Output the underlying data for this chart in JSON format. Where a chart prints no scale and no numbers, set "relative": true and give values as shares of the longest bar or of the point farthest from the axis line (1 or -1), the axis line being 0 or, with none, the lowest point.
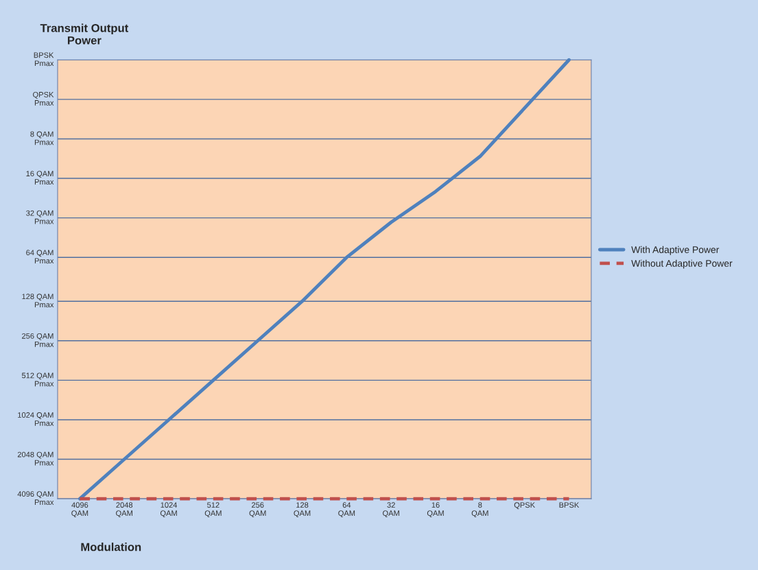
{
  "chart_data": {
    "type": "line",
    "ylabel": "Transmit Output\nPower",
    "xlabel": "Modulation",
    "relative": true,
    "categories": [
      "4096\nQAM",
      "2048\nQAM",
      "1024\nQAM",
      "512\nQAM",
      "256\nQAM",
      "128\nQAM",
      "64\nQAM",
      "32\nQAM",
      "16\nQAM",
      "8\nQAM",
      "QPSK",
      "BPSK"
    ],
    "series": [
      {
        "name": "With Adaptive Power",
        "color": "#4f81bd",
        "line_style": "solid",
        "values": [
          0,
          0.09,
          0.18,
          0.27,
          0.36,
          0.45,
          0.55,
          0.63,
          0.7,
          0.78,
          0.89,
          1
        ]
      },
      {
        "name": "Without Adaptive Power",
        "color": "#c0504d",
        "line_style": "dashed",
        "values": [
          0,
          0,
          0,
          0,
          0,
          0,
          0,
          0,
          0,
          0,
          0,
          0
        ]
      }
    ],
    "ref_lines": [
      {
        "axis": "y",
        "value": 0,
        "label": "4096 QAM\nPmax",
        "color": "#4f6fa0"
      },
      {
        "axis": "y",
        "value": 0.09,
        "label": "2048 QAM\nPmax",
        "color": "#4f6fa0"
      },
      {
        "axis": "y",
        "value": 0.18,
        "label": "1024 QAM\nPmax",
        "color": "#4f6fa0"
      },
      {
        "axis": "y",
        "value": 0.27,
        "label": "512 QAM\nPmax",
        "color": "#4f6fa0"
      },
      {
        "axis": "y",
        "value": 0.36,
        "label": "256 QAM\nPmax",
        "color": "#4f6fa0"
      },
      {
        "axis": "y",
        "value": 0.45,
        "label": "128 QAM\nPmax",
        "color": "#4f6fa0"
      },
      {
        "axis": "y",
        "value": 0.55,
        "label": "64 QAM\nPmax",
        "color": "#4f6fa0"
      },
      {
        "axis": "y",
        "value": 0.64,
        "label": "32 QAM\nPmax",
        "color": "#4f6fa0"
      },
      {
        "axis": "y",
        "value": 0.73,
        "label": "16 QAM\nPmax",
        "color": "#4f6fa0"
      },
      {
        "axis": "y",
        "value": 0.82,
        "label": "8 QAM\nPmax",
        "color": "#4f6fa0"
      },
      {
        "axis": "y",
        "value": 0.91,
        "label": "QPSK\nPmax",
        "color": "#4f6fa0"
      },
      {
        "axis": "y",
        "value": 1,
        "label": "BPSK\nPmax",
        "color": "#4f6fa0"
      }
    ],
    "legend": "right",
    "marker": "none"
  }
}
